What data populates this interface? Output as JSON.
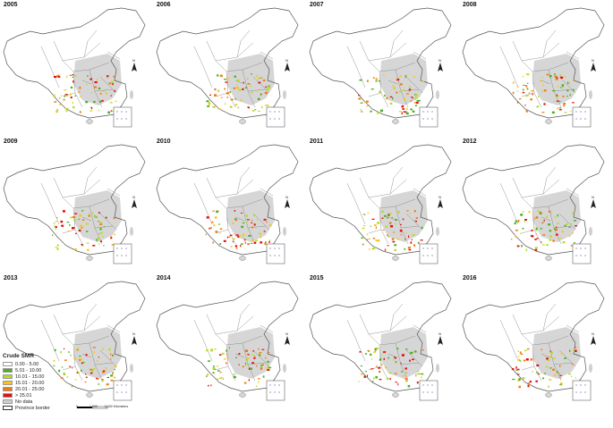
{
  "panels": [
    {
      "year": "2005"
    },
    {
      "year": "2006"
    },
    {
      "year": "2007"
    },
    {
      "year": "2008"
    },
    {
      "year": "2009"
    },
    {
      "year": "2010"
    },
    {
      "year": "2011"
    },
    {
      "year": "2012"
    },
    {
      "year": "2013"
    },
    {
      "year": "2014"
    },
    {
      "year": "2015"
    },
    {
      "year": "2016"
    }
  ],
  "north_label": "N",
  "legend": {
    "title": "Crude SMR",
    "items": [
      {
        "label": "0.00 - 5.00",
        "color": "#ffffff"
      },
      {
        "label": "5.01 - 10.00",
        "color": "#4caf1e"
      },
      {
        "label": "10.01 - 15.00",
        "color": "#b7dc26"
      },
      {
        "label": "15.01 - 20.00",
        "color": "#f5c518"
      },
      {
        "label": "20.01 - 25.00",
        "color": "#f07a12"
      },
      {
        "label": "> 25.01",
        "color": "#e01010"
      },
      {
        "label": "No data",
        "color": "#cfcfcf"
      },
      {
        "label": "Province border",
        "color": "#ffffff"
      }
    ]
  },
  "scale": {
    "labels": [
      "0",
      "1,000",
      "2,000 Kilometers"
    ]
  }
}
